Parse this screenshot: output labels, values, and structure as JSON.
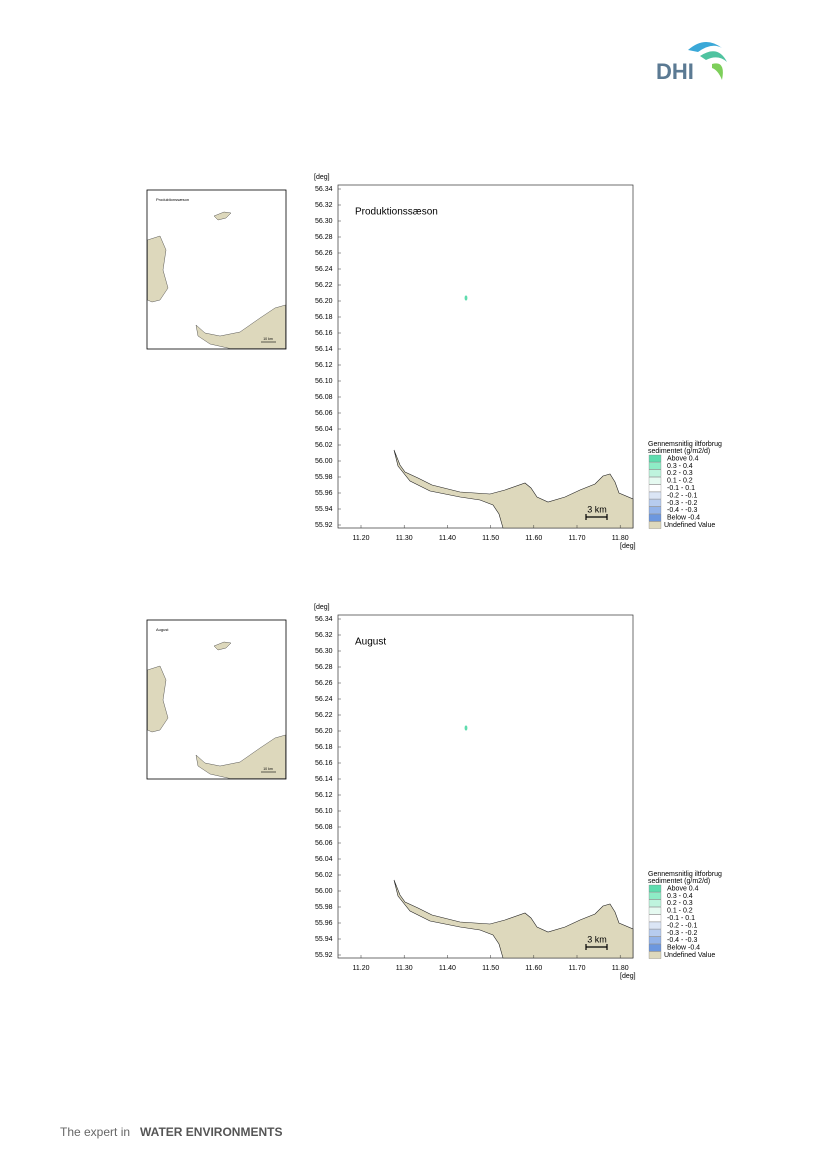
{
  "header": {
    "logo": "DHI"
  },
  "figures": [
    {
      "inset": {
        "title": "Produktionssæson",
        "scale": "10 km"
      },
      "map": {
        "y_unit": "[deg]",
        "x_unit": "[deg]",
        "title": "Produktionssæson",
        "scale": "3 km",
        "yticks": [
          "56.34",
          "56.32",
          "56.30",
          "56.28",
          "56.26",
          "56.24",
          "56.22",
          "56.20",
          "56.18",
          "56.16",
          "56.14",
          "56.12",
          "56.10",
          "56.08",
          "56.06",
          "56.04",
          "56.02",
          "56.00",
          "55.98",
          "55.96",
          "55.94",
          "55.92"
        ],
        "xticks": [
          "11.20",
          "11.30",
          "11.40",
          "11.50",
          "11.60",
          "11.70",
          "11.80"
        ]
      }
    },
    {
      "inset": {
        "title": "August",
        "scale": "10 km"
      },
      "map": {
        "y_unit": "[deg]",
        "x_unit": "[deg]",
        "title": "August",
        "scale": "3 km",
        "yticks": [
          "56.34",
          "56.32",
          "56.30",
          "56.28",
          "56.26",
          "56.24",
          "56.22",
          "56.20",
          "56.18",
          "56.16",
          "56.14",
          "56.12",
          "56.10",
          "56.08",
          "56.06",
          "56.04",
          "56.02",
          "56.00",
          "55.98",
          "55.96",
          "55.94",
          "55.92"
        ],
        "xticks": [
          "11.20",
          "11.30",
          "11.40",
          "11.50",
          "11.60",
          "11.70",
          "11.80"
        ]
      }
    }
  ],
  "legend": {
    "title": [
      "Gennemsnitlig iltforbrug",
      "sedimentet (g/m2/d)"
    ],
    "items": [
      {
        "label": "Above  0.4",
        "color": "#5fdcae"
      },
      {
        "label": "0.3 -  0.4",
        "color": "#8eecc6"
      },
      {
        "label": "0.2 -  0.3",
        "color": "#bff4de"
      },
      {
        "label": "0.1 -  0.2",
        "color": "#e6faf1"
      },
      {
        "label": "-0.1 -  0.1",
        "color": "#ffffff"
      },
      {
        "label": "-0.2 - -0.1",
        "color": "#dbe5f5"
      },
      {
        "label": "-0.3 - -0.2",
        "color": "#b7ccef"
      },
      {
        "label": "-0.4 - -0.3",
        "color": "#93b3e9"
      },
      {
        "label": "Below -0.4",
        "color": "#6c97df"
      },
      {
        "label": "Undefined Value",
        "color": "#ddd8bc"
      }
    ]
  },
  "footer": {
    "tagline": "The expert in",
    "emphasis": "WATER ENVIRONMENTS"
  }
}
